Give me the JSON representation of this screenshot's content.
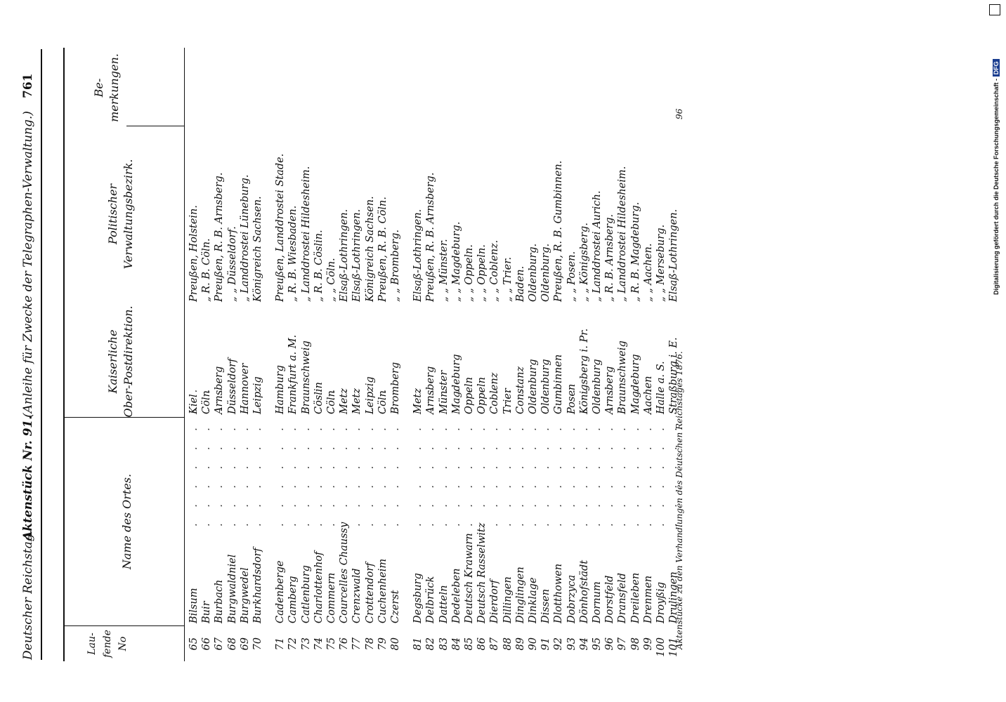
{
  "header": {
    "left": "Deutscher Reichstag.",
    "center": "Aktenstück Nr. 91.",
    "right": "(Anleihe für Zwecke der Telegraphen-Verwaltung.)",
    "page_number": "761"
  },
  "columns": {
    "laufende": "Lau-\nfende\nNo",
    "name": "Name des Ortes.",
    "post": "Kaiserliche\nOber-Postdirektion.",
    "politisch": "Politischer\nVerwaltungsbezirk.",
    "bemerkungen": "Be-\nmerkungen."
  },
  "rows": [
    {
      "num": "65",
      "name": "Bilsum",
      "post": "Kiel",
      "pol": "Preußen, Holstein."
    },
    {
      "num": "66",
      "name": "Buir",
      "post": "Cöln",
      "pol": "„   R. B. Cöln."
    },
    {
      "num": "67",
      "name": "Burbach",
      "post": "Arnsberg",
      "pol": "Preußen, R. B. Arnsberg."
    },
    {
      "num": "68",
      "name": "Burgwaldniel",
      "post": "Düsseldorf",
      "pol": "„   „   Düsseldorf."
    },
    {
      "num": "69",
      "name": "Burgwedel",
      "post": "Hannover",
      "pol": "„   Landdrostei Lüneburg."
    },
    {
      "num": "70",
      "name": "Burkhardsdorf",
      "post": "Leipzig",
      "pol": "Königreich Sachsen."
    },
    {
      "num": "71",
      "name": "Cadenberge",
      "post": "Hamburg",
      "pol": "Preußen, Landdrostei Stade."
    },
    {
      "num": "72",
      "name": "Camberg",
      "post": "Frankfurt a. M.",
      "pol": "„   R. B. Wiesbaden."
    },
    {
      "num": "73",
      "name": "Catlenburg",
      "post": "Braunschweig",
      "pol": "„   Landdrostei Hildesheim."
    },
    {
      "num": "74",
      "name": "Charlottenhof",
      "post": "Cöslin",
      "pol": "„   R. B. Cöslin."
    },
    {
      "num": "75",
      "name": "Commern",
      "post": "Cöln",
      "pol": "„   „   Cöln."
    },
    {
      "num": "76",
      "name": "Courcelles Chaussy",
      "post": "Metz",
      "pol": "Elsaß-Lothringen."
    },
    {
      "num": "77",
      "name": "Crenzwald",
      "post": "Metz",
      "pol": "Elsaß-Lothringen."
    },
    {
      "num": "78",
      "name": "Crottendorf",
      "post": "Leipzig",
      "pol": "Königreich Sachsen."
    },
    {
      "num": "79",
      "name": "Cuchenheim",
      "post": "Cöln",
      "pol": "Preußen, R. B. Cöln."
    },
    {
      "num": "80",
      "name": "Czerst",
      "post": "Bromberg",
      "pol": "„   „   Bromberg."
    },
    {
      "num": "81",
      "name": "Degsburg",
      "post": "Metz",
      "pol": "Elsaß-Lothringen."
    },
    {
      "num": "82",
      "name": "Delbrück",
      "post": "Arnsberg",
      "pol": "Preußen, R. B. Arnsberg."
    },
    {
      "num": "83",
      "name": "Datteln",
      "post": "Münster",
      "pol": "„   „   Münster."
    },
    {
      "num": "84",
      "name": "Dedeleben",
      "post": "Magdeburg",
      "pol": "„   „   Magdeburg."
    },
    {
      "num": "85",
      "name": "Deutsch Krawarn",
      "post": "Oppeln",
      "pol": "„   „   Oppeln."
    },
    {
      "num": "86",
      "name": "Deutsch Rasselwitz",
      "post": "Oppeln",
      "pol": "„   „   Oppeln."
    },
    {
      "num": "87",
      "name": "Dierdorf",
      "post": "Coblenz",
      "pol": "„   „   Coblenz."
    },
    {
      "num": "88",
      "name": "Dillingen",
      "post": "Trier",
      "pol": "„   „   Trier."
    },
    {
      "num": "89",
      "name": "Dinglingen",
      "post": "Constanz",
      "pol": "Baden."
    },
    {
      "num": "90",
      "name": "Dinklage",
      "post": "Oldenburg",
      "pol": "Oldenburg."
    },
    {
      "num": "91",
      "name": "Dissen",
      "post": "Oldenburg",
      "pol": "Oldenburg."
    },
    {
      "num": "92",
      "name": "Dlotthowen",
      "post": "Gumbinnen",
      "pol": "Preußen, R. B. Gumbinnen."
    },
    {
      "num": "93",
      "name": "Dobrzyca",
      "post": "Posen",
      "pol": "„   „   Posen."
    },
    {
      "num": "94",
      "name": "Dönhofstädt",
      "post": "Königsberg i. Pr.",
      "pol": "„   „   Königsberg."
    },
    {
      "num": "95",
      "name": "Dornum",
      "post": "Oldenburg",
      "pol": "„   Landdrostei Aurich."
    },
    {
      "num": "96",
      "name": "Dorstfeld",
      "post": "Arnsberg",
      "pol": "„   R. B. Arnsberg."
    },
    {
      "num": "97",
      "name": "Dransfeld",
      "post": "Braunschweig",
      "pol": "„   Landdrostei Hildesheim."
    },
    {
      "num": "98",
      "name": "Dreileben",
      "post": "Magdeburg",
      "pol": "„   R. B. Magdeburg."
    },
    {
      "num": "99",
      "name": "Drenmen",
      "post": "Aachen",
      "pol": "„   „   Aachen."
    },
    {
      "num": "100",
      "name": "Droyßig",
      "post": "Halle a. S.",
      "pol": "„   „   Merseburg."
    },
    {
      "num": "101",
      "name": "Drulingen",
      "post": "Straßburg i. E.",
      "pol": "Elsaß-Lothringen."
    }
  ],
  "footer": "Aktenstücke zu den Verhandlungen des Deutschen Reichstages 1876.",
  "side_number": "96",
  "sidebar": {
    "text": "Digitalisierung gefördert durch die Deutsche Forschungsgemeinschaft -",
    "logo": "DFG"
  }
}
